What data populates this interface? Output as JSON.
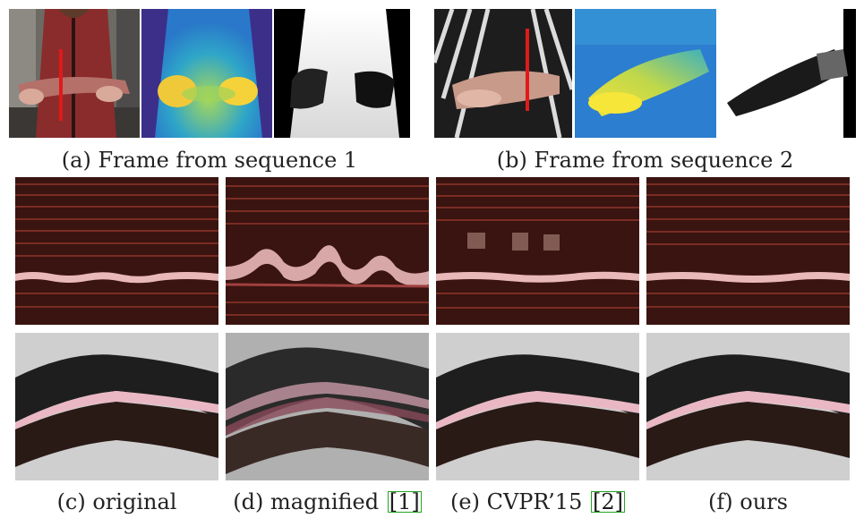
{
  "captions": {
    "a": "(a) Frame from sequence 1",
    "b": "(b) Frame from sequence 2",
    "c": "(c) original",
    "d_text": "(d) magnified",
    "d_ref": "[1]",
    "e_text": "(e) CVPR’15",
    "e_ref": "[2]",
    "f": "(f) ours"
  },
  "panels": {
    "row1": [
      "frame1-rgb",
      "frame1-depth",
      "frame1-mask",
      "frame2-rgb",
      "frame2-depth",
      "frame2-mask"
    ],
    "row2": [
      "slice-original-1",
      "slice-magnified-1",
      "slice-cvpr15-1",
      "slice-ours-1"
    ],
    "row3": [
      "slice-original-2",
      "slice-magnified-2",
      "slice-cvpr15-2",
      "slice-ours-2"
    ]
  },
  "colors": {
    "marker_line": "#e01a1a",
    "citation_box": "#25a525",
    "slice_pink": "#e9b8b8",
    "slice_dark": "#3a1410"
  }
}
